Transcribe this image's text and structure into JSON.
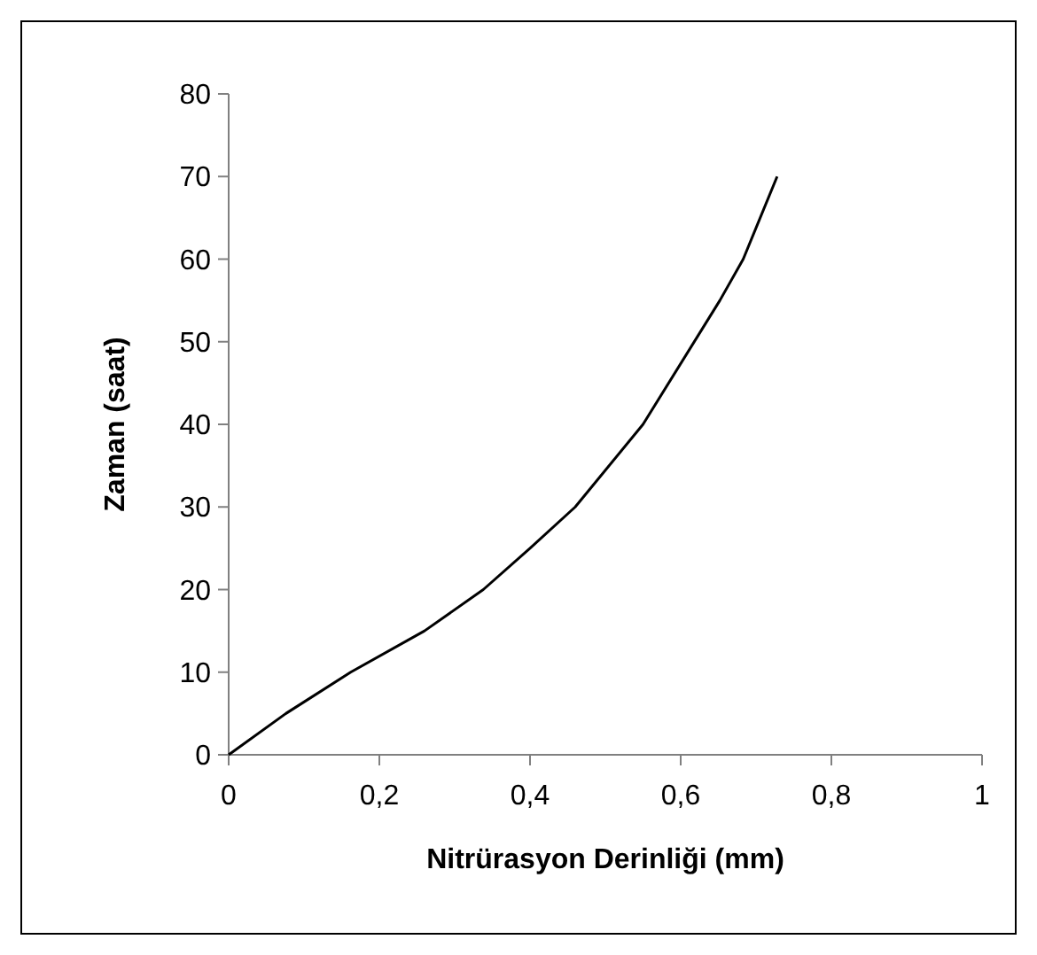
{
  "chart_data": {
    "type": "line",
    "xlabel": "Nitrürasyon Derinliği (mm)",
    "ylabel": "Zaman (saat)",
    "x": [
      0,
      0.076,
      0.162,
      0.26,
      0.338,
      0.4,
      0.46,
      0.55,
      0.652,
      0.683,
      0.728
    ],
    "series": [
      {
        "color": "#000000",
        "values": [
          0,
          5,
          10,
          15,
          20,
          25,
          30,
          40,
          55,
          60,
          70
        ]
      }
    ],
    "xlim": [
      0,
      1
    ],
    "xticks": [
      0,
      {
        "value": 0.2,
        "label": "0,2"
      },
      {
        "value": 0.4,
        "label": "0,4"
      },
      {
        "value": 0.6,
        "label": "0,6"
      },
      {
        "value": 0.8,
        "label": "0,8"
      },
      1
    ],
    "ylim": [
      0,
      80
    ],
    "yticks": [
      0,
      10,
      20,
      30,
      40,
      50,
      60,
      70,
      80
    ],
    "grid": false,
    "marker": "none",
    "line_style": "solid"
  }
}
